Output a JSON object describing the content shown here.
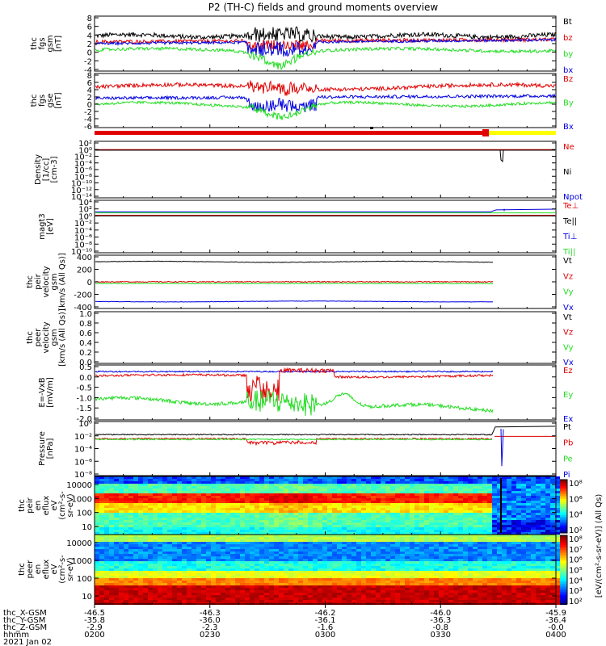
{
  "title": "P2 (TH-C) fields and ground moments overview",
  "colors": {
    "black": "#000000",
    "red": "#e10000",
    "green": "#22dd22",
    "blue": "#0000e0",
    "yellow": "#ffff00"
  },
  "panels": [
    {
      "id": "fgs-gsm",
      "ylabel": [
        "thc",
        "fgs",
        "gsm",
        "[nT]"
      ],
      "yticks": [
        "8",
        "6",
        "4",
        "2",
        "0",
        "-2",
        "-4"
      ],
      "ylim": [
        -4,
        8
      ],
      "legend": [
        {
          "text": "Bt",
          "color": "#000000"
        },
        {
          "text": "bz",
          "color": "#e10000"
        },
        {
          "text": "by",
          "color": "#22dd22"
        },
        {
          "text": "bx",
          "color": "#0000e0"
        }
      ]
    },
    {
      "id": "fgs-gse",
      "ylabel": [
        "thc",
        "fgs",
        "gse",
        "[nT]"
      ],
      "yticks": [
        "8",
        "6",
        "4",
        "2",
        "0",
        "-2",
        "-4",
        "-6"
      ],
      "ylim": [
        -6,
        8
      ],
      "legend": [
        {
          "text": "Bz",
          "color": "#e10000"
        },
        {
          "text": "By",
          "color": "#22dd22"
        },
        {
          "text": "Bx",
          "color": "#0000e0"
        }
      ]
    },
    {
      "id": "density",
      "ylabel": [
        "Density",
        "[1/cc]",
        "[cm-3]"
      ],
      "yticks": [
        "10²",
        "10⁰",
        "10⁻²",
        "10⁻⁴",
        "10⁻⁶",
        "10⁻⁸",
        "10⁻¹⁰",
        "10⁻¹²",
        "10⁻¹⁴"
      ],
      "scale": "log",
      "legend": [
        {
          "text": "Ne",
          "color": "#e10000"
        },
        {
          "text": "Ni",
          "color": "#000000"
        },
        {
          "text": "Npot",
          "color": "#0000e0"
        }
      ]
    },
    {
      "id": "temperature",
      "ylabel": [
        "magt3",
        "[eV]"
      ],
      "yticks": [
        "10⁴",
        "10²",
        "10⁰",
        "10⁻²",
        "10⁻⁴",
        "10⁻⁶",
        "10⁻⁸",
        "10⁻¹⁰"
      ],
      "scale": "log",
      "legend": [
        {
          "text": "Te⊥",
          "color": "#e10000"
        },
        {
          "text": "Te||",
          "color": "#000000"
        },
        {
          "text": "Ti⊥",
          "color": "#0000e0"
        },
        {
          "text": "Ti||",
          "color": "#22dd22"
        }
      ]
    },
    {
      "id": "peir-velocity",
      "ylabel": [
        "thc",
        "peir",
        "velocity",
        "gsm",
        "[km/s (All Qs)]"
      ],
      "yticks": [
        "400",
        "200",
        "0",
        "-200",
        "-400"
      ],
      "ylim": [
        -400,
        400
      ],
      "legend": [
        {
          "text": "Vt",
          "color": "#000000"
        },
        {
          "text": "Vz",
          "color": "#e10000"
        },
        {
          "text": "Vy",
          "color": "#22dd22"
        },
        {
          "text": "Vx",
          "color": "#0000e0"
        }
      ]
    },
    {
      "id": "peer-velocity",
      "ylabel": [
        "thc",
        "peer",
        "velocity",
        "gsm",
        "[km/s (All Qs)]"
      ],
      "yticks": [
        "1.0",
        "0.8",
        "0.6",
        "0.4",
        "0.2",
        "0.0"
      ],
      "ylim": [
        0,
        1
      ],
      "legend": [
        {
          "text": "Vt",
          "color": "#000000"
        },
        {
          "text": "Vz",
          "color": "#e10000"
        },
        {
          "text": "Vy",
          "color": "#22dd22"
        },
        {
          "text": "Vx",
          "color": "#0000e0"
        }
      ]
    },
    {
      "id": "e-field",
      "ylabel": [
        "E=-VxB",
        "[mV/m]"
      ],
      "yticks": [
        "0.5",
        "0.0",
        "-0.5",
        "-1.0",
        "-1.5",
        "-2.0"
      ],
      "ylim": [
        -2,
        0.5
      ],
      "legend": [
        {
          "text": "Ez",
          "color": "#e10000"
        },
        {
          "text": "Ey",
          "color": "#22dd22"
        },
        {
          "text": "Ex",
          "color": "#0000e0"
        }
      ]
    },
    {
      "id": "pressure",
      "ylabel": [
        "Pressure",
        "[nPa]"
      ],
      "yticks": [
        "10⁰",
        "10⁻²",
        "10⁻⁴",
        "10⁻⁶",
        "10⁻⁸"
      ],
      "scale": "log",
      "legend": [
        {
          "text": "Pt",
          "color": "#000000"
        },
        {
          "text": "Pb",
          "color": "#e10000"
        },
        {
          "text": "Pe",
          "color": "#22dd22"
        },
        {
          "text": "Pi",
          "color": "#0000e0"
        }
      ]
    },
    {
      "id": "peir-spec",
      "ylabel": [
        "thc",
        "peir",
        "en",
        "eflux",
        "eV",
        "(cm²-s-",
        "sr-eV)"
      ],
      "yticks": [
        "10000",
        "1000",
        "100",
        "10"
      ],
      "scale": "log"
    },
    {
      "id": "peer-spec",
      "ylabel": [
        "thc",
        "peer",
        "en",
        "eflux",
        "eV",
        "(cm²-s-",
        "sr-eV)"
      ],
      "yticks": [
        "10000",
        "1000",
        "100",
        "10"
      ],
      "scale": "log"
    }
  ],
  "colorbar": {
    "label": "[eV/(cm²-s-sr-eV)] (All Qs)",
    "upper_ticks": [
      "10⁸",
      "10⁶",
      "10⁴",
      "10²"
    ],
    "lower_ticks": [
      "10⁸",
      "10⁷",
      "10⁶",
      "10⁵",
      "10⁴",
      "10³",
      "10²"
    ]
  },
  "xaxis": {
    "row_labels": [
      "thc_X-GSM",
      "thc_Y-GSM",
      "thc_Z-GSM",
      "hhmm",
      "2021 Jan 02"
    ],
    "ticks": [
      {
        "x": "-46.5",
        "y": "-35.8",
        "z": "-2.9",
        "t": "0200"
      },
      {
        "x": "-46.3",
        "y": "-36.0",
        "z": "-2.3",
        "t": "0230"
      },
      {
        "x": "-46.2",
        "y": "-36.1",
        "z": "-1.6",
        "t": "0300"
      },
      {
        "x": "-46.0",
        "y": "-36.3",
        "z": "-0.8",
        "t": "0330"
      },
      {
        "x": "-45.9",
        "y": "-36.4",
        "z": "-0.0",
        "t": "0400"
      }
    ]
  },
  "chart_data": [
    {
      "type": "line",
      "title": "P2 (TH-C) fields and ground moments overview",
      "x": [
        "0200",
        "0230",
        "0300",
        "0330",
        "0400"
      ],
      "ylabel": "thc fgs gsm [nT]",
      "ylim": [
        -4,
        8
      ],
      "series": [
        {
          "name": "Bt",
          "values": [
            3.5,
            3.8,
            3.6,
            4.0,
            4.2
          ]
        },
        {
          "name": "bz",
          "values": [
            2.4,
            2.6,
            2.5,
            2.8,
            3.0
          ]
        },
        {
          "name": "by",
          "values": [
            0.5,
            1.0,
            -2.5,
            1.0,
            1.5
          ]
        },
        {
          "name": "bx",
          "values": [
            2.0,
            2.5,
            2.0,
            3.0,
            3.0
          ]
        }
      ]
    },
    {
      "type": "line",
      "ylabel": "thc fgs gse [nT]",
      "ylim": [
        -6,
        8
      ],
      "series": [
        {
          "name": "Bz",
          "values": [
            4.5,
            5.0,
            4.5,
            5.5,
            4.5
          ]
        },
        {
          "name": "By",
          "values": [
            0,
            0.5,
            -2.5,
            0.5,
            0.5
          ]
        },
        {
          "name": "Bx",
          "values": [
            1.5,
            2.0,
            1.5,
            2.5,
            3.0
          ]
        }
      ]
    },
    {
      "type": "line",
      "ylabel": "magt3 [eV]",
      "series": [
        {
          "name": "Te⊥",
          "values": [
            1,
            1,
            1,
            1,
            1
          ]
        },
        {
          "name": "Ti⊥",
          "values": [
            10,
            10,
            10,
            10,
            100
          ]
        }
      ]
    },
    {
      "type": "line",
      "ylabel": "thc peir velocity gsm [km/s (All Qs)]",
      "ylim": [
        -400,
        400
      ],
      "series": [
        {
          "name": "Vt",
          "values": [
            300,
            305,
            310,
            300,
            300
          ]
        },
        {
          "name": "Vz",
          "values": [
            0,
            0,
            0,
            0,
            0
          ]
        },
        {
          "name": "Vy",
          "values": [
            -20,
            -20,
            -20,
            -20,
            -20
          ]
        },
        {
          "name": "Vx",
          "values": [
            -300,
            -300,
            -300,
            -300,
            -300
          ]
        }
      ]
    },
    {
      "type": "line",
      "ylabel": "E=-VxB [mV/m]",
      "ylim": [
        -2,
        0.5
      ],
      "series": [
        {
          "name": "Ez",
          "values": [
            0.1,
            0.0,
            -0.5,
            0.3,
            0.0
          ]
        },
        {
          "name": "Ey",
          "values": [
            -1.0,
            -1.2,
            -1.0,
            -1.6,
            -1.6
          ]
        },
        {
          "name": "Ex",
          "values": [
            0.2,
            0.2,
            0.2,
            0.2,
            0.2
          ]
        }
      ]
    }
  ]
}
